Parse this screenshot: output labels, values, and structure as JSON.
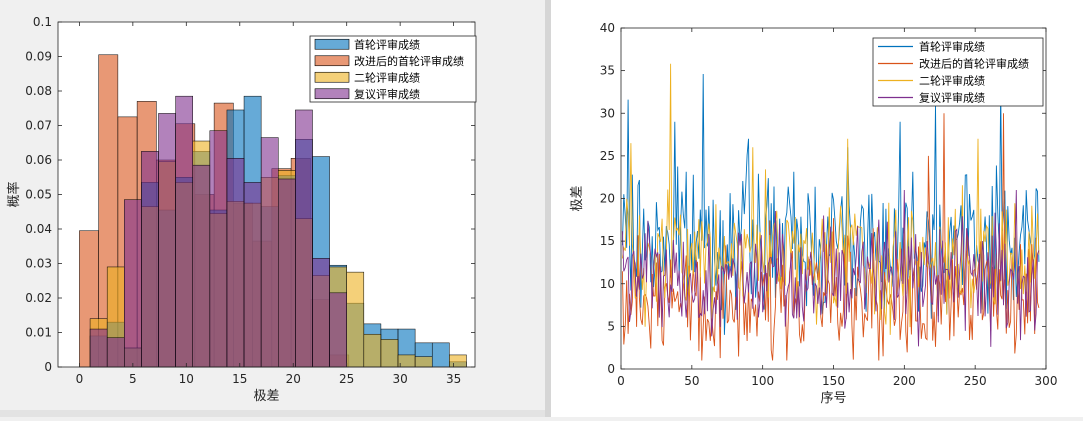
{
  "charts": [
    {
      "type": "histogram",
      "title": "",
      "xlabel": "极差",
      "ylabel": "概率",
      "xlim": [
        -2,
        37
      ],
      "ylim": [
        0,
        0.1
      ],
      "xticks": [
        0,
        5,
        10,
        15,
        20,
        25,
        30,
        35
      ],
      "yticks": [
        0,
        0.01,
        0.02,
        0.03,
        0.04,
        0.05,
        0.06,
        0.07,
        0.08,
        0.09,
        0.1
      ],
      "legend": {
        "position": "top-right"
      },
      "series": [
        {
          "name": "改进后的首轮评审成绩",
          "color": "#D95319",
          "bin_start": 0,
          "bin_width": 1.8,
          "values": [
            0.0395,
            0.0905,
            0.0725,
            0.077,
            0.06,
            0.0705,
            0.05,
            0.0765,
            0.0475,
            0.0365,
            0.0575,
            0.0605,
            0.0195,
            0.0035
          ]
        },
        {
          "name": "首轮评审成绩",
          "color": "#0072BD",
          "bin_start": 1,
          "bin_width": 1.6,
          "values": [
            0.009,
            0.013,
            0.0055,
            0.0535,
            0.0455,
            0.055,
            0.0625,
            0.0455,
            0.0745,
            0.0785,
            0.0465,
            0.0555,
            0.066,
            0.061,
            0.0295,
            0.0185,
            0.0125,
            0.011,
            0.011,
            0.007,
            0.007,
            0.0015
          ]
        },
        {
          "name": "二轮评审成绩",
          "color": "#EDB120",
          "bin_start": 1,
          "bin_width": 1.6,
          "values": [
            0.014,
            0.029,
            0.0055,
            0.0465,
            0.0595,
            0.0535,
            0.0655,
            0.0445,
            0.048,
            0.0475,
            0.055,
            0.057,
            0.043,
            0.0265,
            0.029,
            0.0275,
            0.0095,
            0.008,
            0.0035,
            0.003,
            0.0,
            0.0035
          ]
        },
        {
          "name": "复议评审成绩",
          "color": "#7E2F8E",
          "bin_start": 1,
          "bin_width": 1.6,
          "values": [
            0.011,
            0.0085,
            0.0485,
            0.0625,
            0.0735,
            0.0785,
            0.0585,
            0.0685,
            0.0605,
            0.0535,
            0.0665,
            0.0545,
            0.0745,
            0.0315,
            0.0215,
            0.0
          ]
        }
      ]
    },
    {
      "type": "line",
      "title": "",
      "xlabel": "序号",
      "ylabel": "极差",
      "xlim": [
        0,
        300
      ],
      "ylim": [
        0,
        40
      ],
      "xticks": [
        0,
        50,
        100,
        150,
        200,
        250,
        300
      ],
      "yticks": [
        0,
        5,
        10,
        15,
        20,
        25,
        30,
        35,
        40
      ],
      "legend": {
        "position": "top-right"
      },
      "n_points": 295,
      "series": [
        {
          "name": "首轮评审成绩",
          "color": "#0072BD",
          "mean": 15,
          "spread": 5,
          "min": 4,
          "max": 34.6,
          "peaks": [
            [
              5,
              31.6
            ],
            [
              38,
              29
            ],
            [
              58,
              34.6
            ],
            [
              90,
              27
            ],
            [
              160,
              26
            ],
            [
              197,
              29
            ],
            [
              222,
              31
            ],
            [
              268,
              33
            ]
          ]
        },
        {
          "name": "改进后的首轮评审成绩",
          "color": "#D95319",
          "mean": 8.5,
          "spread": 4.5,
          "min": 1,
          "max": 30,
          "peaks": [
            [
              217,
              25
            ],
            [
              228,
              30
            ],
            [
              270,
              30
            ]
          ]
        },
        {
          "name": "二轮评审成绩",
          "color": "#EDB120",
          "mean": 13,
          "spread": 4.5,
          "min": 4,
          "max": 35.8,
          "peaks": [
            [
              7,
              26.5
            ],
            [
              35,
              35.8
            ],
            [
              93,
              26
            ],
            [
              160,
              27
            ],
            [
              252,
              27
            ]
          ]
        },
        {
          "name": "复议评审成绩",
          "color": "#7E2F8E",
          "mean": 11,
          "spread": 4,
          "min": 2,
          "max": 23,
          "peaks": [
            [
              200,
              21
            ],
            [
              279,
              21
            ]
          ]
        }
      ]
    }
  ]
}
